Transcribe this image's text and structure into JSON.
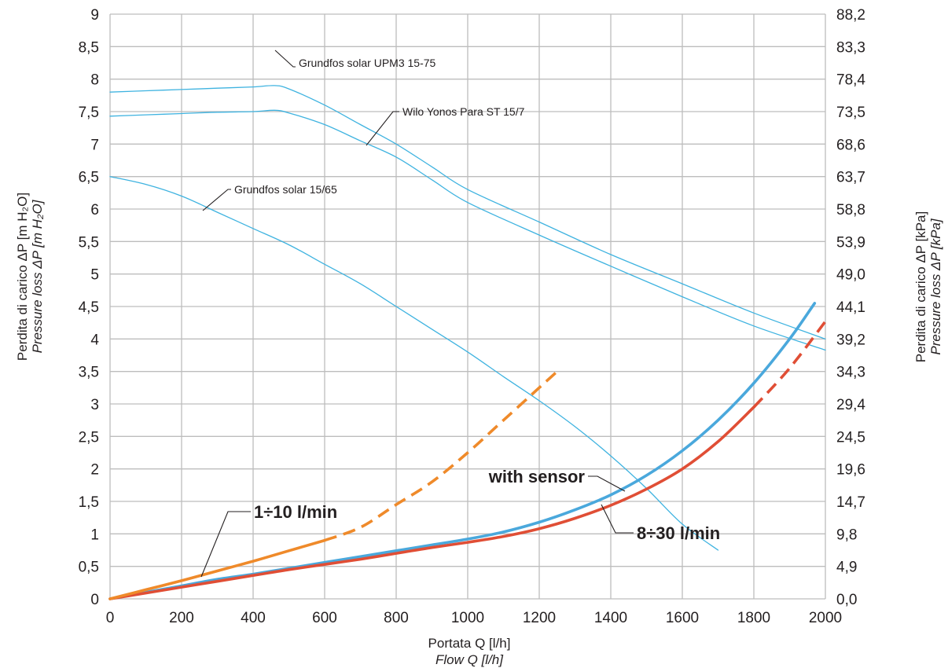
{
  "chart_data": {
    "type": "line",
    "xlabel": "Portata Q [l/h]",
    "xlabel_en": "Flow Q [l/h]",
    "ylabel_left": "Perdita di carico ΔP [m H₂O]",
    "ylabel_left_en": "Pressure loss ΔP [m H₂O]",
    "ylabel_right": "Perdita di carico ΔP [kPa]",
    "ylabel_right_en": "Pressure loss ΔP [kPa]",
    "xlim": [
      0,
      2000
    ],
    "ylim": [
      0,
      9
    ],
    "x_ticks": [
      "0",
      "200",
      "400",
      "600",
      "800",
      "1000",
      "1200",
      "1400",
      "1600",
      "1800",
      "2000"
    ],
    "y_ticks_left": [
      "0",
      "0,5",
      "1",
      "1,5",
      "2",
      "2,5",
      "3",
      "3,5",
      "4",
      "4,5",
      "5",
      "5,5",
      "6",
      "6,5",
      "7",
      "7,5",
      "8",
      "8,5",
      "9"
    ],
    "y_ticks_right": [
      "0,0",
      "4,9",
      "9,8",
      "14,7",
      "19,6",
      "24,5",
      "29,4",
      "34,3",
      "39,2",
      "44,1",
      "49,0",
      "53,9",
      "58,8",
      "63,7",
      "68,6",
      "73,5",
      "78,4",
      "83,3",
      "88,2"
    ],
    "grid": true,
    "series": [
      {
        "name": "Grundfos solar UPM3 15-75",
        "color": "#3fb3e0",
        "x": [
          0,
          100,
          200,
          300,
          400,
          460,
          500,
          600,
          700,
          800,
          900,
          1000,
          1200,
          1400,
          1600,
          1800,
          2000
        ],
        "y": [
          7.8,
          7.82,
          7.84,
          7.86,
          7.88,
          7.9,
          7.85,
          7.6,
          7.3,
          7.0,
          6.65,
          6.3,
          5.8,
          5.3,
          4.85,
          4.4,
          4.0
        ]
      },
      {
        "name": "Wilo Yonos Para ST 15/7",
        "color": "#3fb3e0",
        "x": [
          0,
          100,
          200,
          300,
          400,
          460,
          500,
          600,
          700,
          800,
          900,
          1000,
          1200,
          1400,
          1600,
          1800,
          2000
        ],
        "y": [
          7.43,
          7.45,
          7.47,
          7.49,
          7.5,
          7.52,
          7.48,
          7.3,
          7.05,
          6.8,
          6.45,
          6.1,
          5.6,
          5.12,
          4.65,
          4.2,
          3.83
        ]
      },
      {
        "name": "Grundfos solar 15/65",
        "color": "#3fb3e0",
        "x": [
          0,
          100,
          200,
          300,
          400,
          500,
          600,
          700,
          800,
          900,
          1000,
          1100,
          1200,
          1300,
          1400,
          1500,
          1600,
          1700
        ],
        "y": [
          6.5,
          6.38,
          6.2,
          5.95,
          5.7,
          5.45,
          5.15,
          4.85,
          4.5,
          4.15,
          3.8,
          3.42,
          3.05,
          2.65,
          2.2,
          1.7,
          1.15,
          0.75
        ]
      },
      {
        "name": "with sensor",
        "color": "#4aa8dc",
        "x": [
          0,
          100,
          200,
          300,
          400,
          500,
          600,
          700,
          800,
          900,
          1000,
          1100,
          1200,
          1300,
          1400,
          1500,
          1600,
          1700,
          1800,
          1900,
          1970
        ],
        "y": [
          0,
          0.1,
          0.2,
          0.3,
          0.38,
          0.47,
          0.56,
          0.65,
          0.74,
          0.83,
          0.92,
          1.03,
          1.18,
          1.37,
          1.6,
          1.9,
          2.28,
          2.75,
          3.32,
          4.0,
          4.55
        ]
      },
      {
        "name": "8÷30 l/min",
        "color": "#e04e35",
        "x": [
          0,
          100,
          200,
          300,
          400,
          500,
          600,
          700,
          800,
          900,
          1000,
          1100,
          1200,
          1300,
          1400,
          1500,
          1600,
          1700,
          1800,
          1900,
          2000
        ],
        "y": [
          0,
          0.09,
          0.18,
          0.27,
          0.36,
          0.45,
          0.53,
          0.61,
          0.7,
          0.79,
          0.87,
          0.96,
          1.08,
          1.24,
          1.44,
          1.69,
          2.0,
          2.42,
          2.95,
          3.55,
          4.27
        ],
        "dashed_from_x": 1800
      },
      {
        "name": "1÷10 l/min",
        "color": "#ef8a2a",
        "x": [
          0,
          100,
          200,
          300,
          400,
          500,
          600,
          700,
          800,
          900,
          1000,
          1100,
          1200,
          1260
        ],
        "y": [
          0,
          0.14,
          0.28,
          0.43,
          0.58,
          0.74,
          0.9,
          1.1,
          1.45,
          1.8,
          2.25,
          2.75,
          3.25,
          3.55
        ],
        "dashed_from_x": 600
      }
    ],
    "annotations": [
      {
        "text": "Grundfos solar UPM3 15-75",
        "series": 0,
        "bold": false
      },
      {
        "text": "Wilo Yonos Para ST 15/7",
        "series": 1,
        "bold": false
      },
      {
        "text": "Grundfos solar 15/65",
        "series": 2,
        "bold": false
      },
      {
        "text": "1÷10 l/min",
        "series": 5,
        "bold": true
      },
      {
        "text": "with sensor",
        "series": 3,
        "bold": true
      },
      {
        "text": "8÷30 l/min",
        "series": 4,
        "bold": true
      }
    ]
  }
}
